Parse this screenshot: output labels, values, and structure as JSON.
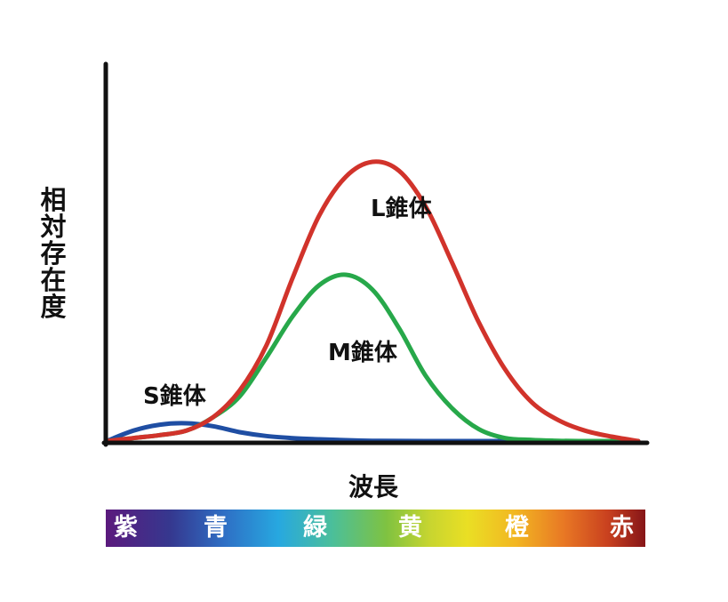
{
  "chart_data": {
    "type": "line",
    "title": "",
    "xlabel": "波長",
    "ylabel": "相対存在度",
    "grid": false,
    "legend": "none",
    "xlim": [
      0,
      100
    ],
    "ylim": [
      0,
      100
    ],
    "series": [
      {
        "name": "S錐体",
        "color": "#1f4ea3",
        "points": [
          [
            0,
            0
          ],
          [
            5,
            3.5
          ],
          [
            10,
            5.5
          ],
          [
            15,
            6
          ],
          [
            20,
            5
          ],
          [
            25,
            3
          ],
          [
            30,
            1.7
          ],
          [
            35,
            1
          ],
          [
            40,
            0.6
          ],
          [
            45,
            0.3
          ],
          [
            50,
            0.1
          ],
          [
            60,
            0
          ],
          [
            100,
            0
          ]
        ]
      },
      {
        "name": "M錐体",
        "color": "#27a84a",
        "points": [
          [
            0,
            0
          ],
          [
            5,
            1
          ],
          [
            10,
            2
          ],
          [
            15,
            3.5
          ],
          [
            20,
            8
          ],
          [
            25,
            15
          ],
          [
            30,
            28
          ],
          [
            35,
            42
          ],
          [
            40,
            52.5
          ],
          [
            45,
            56
          ],
          [
            50,
            51
          ],
          [
            55,
            38
          ],
          [
            60,
            22
          ],
          [
            65,
            11
          ],
          [
            70,
            4
          ],
          [
            75,
            1
          ],
          [
            80,
            0.4
          ],
          [
            85,
            0.1
          ],
          [
            90,
            0
          ],
          [
            100,
            0
          ]
        ]
      },
      {
        "name": "L錐体",
        "color": "#d1332b",
        "points": [
          [
            0,
            0
          ],
          [
            5,
            1
          ],
          [
            10,
            2
          ],
          [
            15,
            3.5
          ],
          [
            20,
            8
          ],
          [
            25,
            17
          ],
          [
            30,
            32
          ],
          [
            35,
            55
          ],
          [
            40,
            76
          ],
          [
            45,
            89
          ],
          [
            50,
            94
          ],
          [
            55,
            91
          ],
          [
            60,
            79
          ],
          [
            65,
            60
          ],
          [
            70,
            40
          ],
          [
            75,
            24
          ],
          [
            80,
            13
          ],
          [
            85,
            7
          ],
          [
            90,
            3.5
          ],
          [
            95,
            1.5
          ],
          [
            100,
            0
          ]
        ]
      }
    ]
  },
  "labels": {
    "ylabel_chars": [
      "相",
      "対",
      "存",
      "在",
      "度"
    ],
    "xlabel": "波長",
    "s_cone": "S錐体",
    "m_cone": "M錐体",
    "l_cone": "L錐体"
  },
  "spectrum": {
    "colors": [
      "紫",
      "青",
      "緑",
      "黄",
      "橙",
      "赤"
    ]
  }
}
